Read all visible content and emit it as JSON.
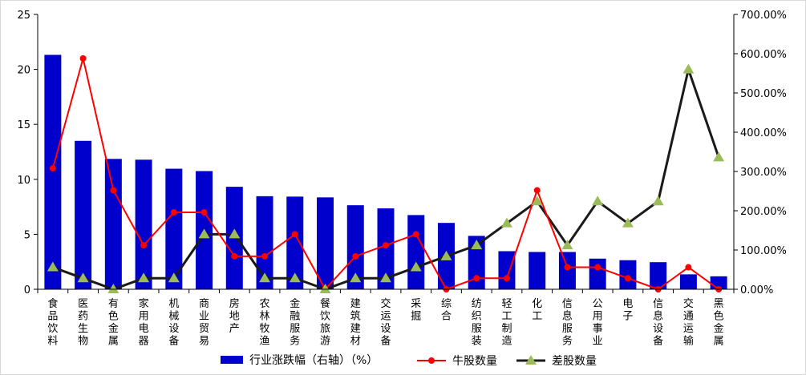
{
  "chart_data": {
    "type": "bar",
    "categories": [
      "食品饮料",
      "医药生物",
      "有色金属",
      "家用电器",
      "机械设备",
      "商业贸易",
      "房地产",
      "农林牧渔",
      "金融服务",
      "餐饮旅游",
      "建筑建材",
      "交运设备",
      "采掘",
      "综合",
      "纺织服装",
      "轻工制造",
      "化工",
      "信息服务",
      "公用事业",
      "电子",
      "信息设备",
      "交通运输",
      "黑色金属"
    ],
    "series": [
      {
        "name": "行业涨跌幅（右轴）（%）",
        "type": "bar",
        "axis": "right",
        "color": "#0000CC",
        "values": [
          597,
          378,
          332,
          330,
          307,
          301,
          261,
          237,
          236,
          234,
          214,
          206,
          189,
          169,
          136,
          97,
          95,
          95,
          78,
          74,
          69,
          38,
          33
        ]
      },
      {
        "name": "牛股数量",
        "type": "line",
        "axis": "left",
        "color": "#FF0000",
        "marker": "circle",
        "values": [
          11,
          21,
          9,
          4,
          7,
          7,
          3,
          3,
          5,
          0,
          3,
          4,
          5,
          0,
          1,
          1,
          9,
          2,
          2,
          1,
          0,
          2,
          0
        ]
      },
      {
        "name": "差股数量",
        "type": "line",
        "axis": "left",
        "color": "#1A1A1A",
        "marker": "triangle",
        "markerColor": "#9BBB59",
        "values": [
          2,
          1,
          0,
          1,
          1,
          5,
          5,
          1,
          1,
          0,
          1,
          1,
          2,
          3,
          4,
          6,
          8,
          4,
          8,
          6,
          8,
          20,
          12
        ]
      }
    ],
    "left_axis": {
      "min": 0,
      "max": 25,
      "step": 5,
      "ticks": [
        "0",
        "5",
        "10",
        "15",
        "20",
        "25"
      ]
    },
    "right_axis": {
      "min": 0,
      "max": 700,
      "step": 100,
      "ticks": [
        "0.00%",
        "100.00%",
        "200.00%",
        "300.00%",
        "400.00%",
        "500.00%",
        "600.00%",
        "700.00%"
      ]
    },
    "grid": false,
    "legend_position": "bottom"
  }
}
